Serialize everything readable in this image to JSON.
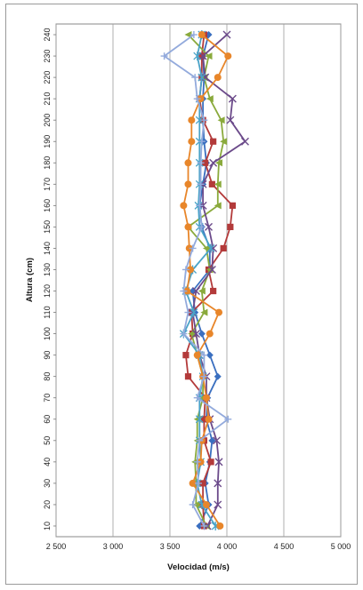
{
  "chart_data": {
    "type": "line",
    "orientation": "horizontal-profile",
    "title": "",
    "xlabel": "Velocidad (m/s)",
    "ylabel": "Altura (cm)",
    "xlim": [
      2500,
      5000
    ],
    "ylim": [
      5,
      245
    ],
    "x_ticks": [
      "2 500",
      "3 000",
      "3 500",
      "4 000",
      "4 500",
      "5 000"
    ],
    "x_tick_values": [
      2500,
      3000,
      3500,
      4000,
      4500,
      5000
    ],
    "y_ticks": [
      "10",
      "20",
      "30",
      "40",
      "50",
      "60",
      "70",
      "80",
      "90",
      "100",
      "110",
      "120",
      "130",
      "140",
      "150",
      "160",
      "170",
      "180",
      "190",
      "200",
      "210",
      "220",
      "230",
      "240"
    ],
    "y_tick_values": [
      10,
      20,
      30,
      40,
      50,
      60,
      70,
      80,
      90,
      100,
      110,
      120,
      130,
      140,
      150,
      160,
      170,
      180,
      190,
      200,
      210,
      220,
      230,
      240
    ],
    "grid": "vertical",
    "legend": "none",
    "heights": [
      10,
      20,
      30,
      40,
      50,
      60,
      70,
      80,
      90,
      100,
      110,
      120,
      130,
      140,
      150,
      160,
      170,
      180,
      190,
      200,
      210,
      220,
      230,
      240
    ],
    "series": [
      {
        "color": "#3a6fc0",
        "marker": "diamond",
        "values": [
          3760,
          3840,
          3810,
          3850,
          3870,
          3820,
          3830,
          3920,
          3850,
          3780,
          3720,
          3700,
          3850,
          3850,
          3780,
          3760,
          3790,
          3820,
          3800,
          3790,
          3790,
          3800,
          3790,
          3840
        ]
      },
      {
        "color": "#b33a3a",
        "marker": "square",
        "values": [
          3800,
          3790,
          3790,
          3860,
          3800,
          3800,
          3810,
          3660,
          3640,
          3700,
          3690,
          3880,
          3840,
          3970,
          4030,
          4050,
          3870,
          3810,
          3880,
          3790,
          3760,
          3780,
          3780,
          3800
        ]
      },
      {
        "color": "#8aaa3c",
        "marker": "triangle",
        "values": [
          3820,
          3730,
          3730,
          3720,
          3740,
          3740,
          3790,
          3790,
          3740,
          3690,
          3800,
          3780,
          3850,
          3820,
          3660,
          3920,
          3920,
          3930,
          3970,
          3950,
          3850,
          3800,
          3840,
          3660
        ]
      },
      {
        "color": "#6b4a8a",
        "marker": "x",
        "values": [
          3830,
          3920,
          3920,
          3930,
          3910,
          3850,
          3820,
          3820,
          3760,
          3730,
          3700,
          3730,
          3870,
          3880,
          3840,
          3790,
          3790,
          3880,
          4160,
          4030,
          4050,
          3810,
          3790,
          4000
        ]
      },
      {
        "color": "#4aa3c8",
        "marker": "star",
        "values": [
          3900,
          3780,
          3740,
          3770,
          3760,
          3760,
          3760,
          3790,
          3760,
          3620,
          3710,
          3640,
          3700,
          3860,
          3760,
          3750,
          3760,
          3760,
          3760,
          3760,
          3760,
          3780,
          3740,
          3780
        ]
      },
      {
        "color": "#e8862a",
        "marker": "circle",
        "values": [
          3940,
          3820,
          3700,
          3770,
          3780,
          3840,
          3820,
          3790,
          3740,
          3850,
          3930,
          3650,
          3680,
          3670,
          3660,
          3620,
          3660,
          3660,
          3690,
          3690,
          3770,
          3920,
          4010,
          3780
        ]
      },
      {
        "color": "#93aadc",
        "marker": "plus",
        "values": [
          3800,
          3700,
          3750,
          3740,
          3760,
          4010,
          3740,
          3800,
          3800,
          3620,
          3660,
          3620,
          3640,
          3700,
          3780,
          3760,
          3770,
          3770,
          3780,
          3800,
          3740,
          3720,
          3450,
          3710
        ]
      }
    ]
  }
}
